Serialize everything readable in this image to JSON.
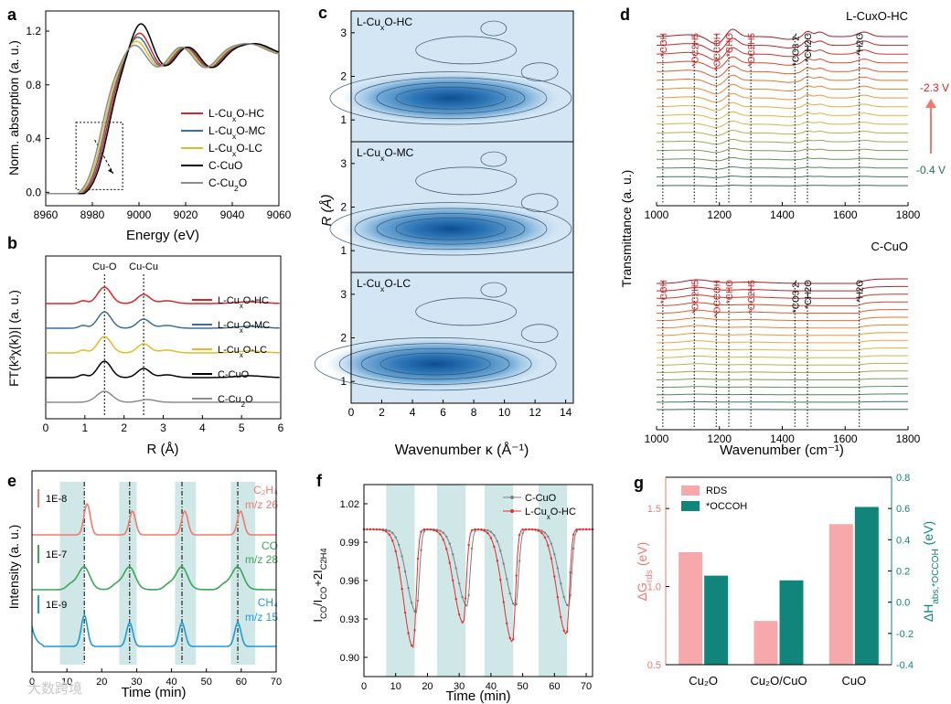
{
  "chart_data": [
    {
      "panel": "a",
      "type": "line",
      "xlabel": "Energy (eV)",
      "ylabel": "Norm. absorption (a. u.)",
      "xlim": [
        8960,
        9060
      ],
      "ylim": [
        -0.1,
        1.35
      ],
      "xticks": [
        8960,
        8980,
        9000,
        9020,
        9040,
        9060
      ],
      "yticks": [
        0.0,
        0.4,
        0.8,
        1.2
      ],
      "series": [
        {
          "name": "L-CuxO-HC",
          "color": "#d62728",
          "shift": 0,
          "peak": 1.22
        },
        {
          "name": "L-CuxO-MC",
          "color": "#3a6f9b",
          "shift": -0.7,
          "peak": 1.19
        },
        {
          "name": "L-CuxO-LC",
          "color": "#e8b923",
          "shift": -1.4,
          "peak": 1.16
        },
        {
          "name": "C-CuO",
          "color": "#000000",
          "shift": 0.7,
          "peak": 1.29
        },
        {
          "name": "C-Cu2O",
          "color": "#8c8c8c",
          "shift": -2.2,
          "peak": 1.13
        }
      ],
      "legend": [
        {
          "main": "L-Cu",
          "sub": "x",
          "rest": "O-HC",
          "color": "#d62728"
        },
        {
          "main": "L-Cu",
          "sub": "x",
          "rest": "O-MC",
          "color": "#3a6f9b"
        },
        {
          "main": "L-Cu",
          "sub": "x",
          "rest": "O-LC",
          "color": "#e8b923"
        },
        {
          "main": "C-CuO",
          "sub": "",
          "rest": "",
          "color": "#000000"
        },
        {
          "main": "C-Cu",
          "sub": "2",
          "rest": "O",
          "color": "#8c8c8c"
        }
      ]
    },
    {
      "panel": "b",
      "type": "line",
      "xlabel": "R (Å)",
      "ylabel": "FT(k³χ(k))| (a. u.)",
      "xlim": [
        0,
        6
      ],
      "xticks": [
        0,
        1,
        2,
        3,
        4,
        5,
        6
      ],
      "annotations": [
        "Cu-O",
        "Cu-Cu"
      ],
      "markers_R": [
        1.5,
        2.5
      ],
      "series": [
        {
          "name": "L-CuxO-HC",
          "color": "#d62728",
          "offset": 4
        },
        {
          "name": "L-CuxO-MC",
          "color": "#3a6f9b",
          "offset": 3
        },
        {
          "name": "L-CuxO-LC",
          "color": "#e8b923",
          "offset": 2
        },
        {
          "name": "C-CuO",
          "color": "#000000",
          "offset": 1
        },
        {
          "name": "C-Cu2O",
          "color": "#8c8c8c",
          "offset": 0
        }
      ],
      "labels": [
        {
          "main": "L-Cu",
          "sub": "x",
          "rest": "O-HC"
        },
        {
          "main": "L-Cu",
          "sub": "x",
          "rest": "O-MC"
        },
        {
          "main": "L-Cu",
          "sub": "x",
          "rest": "O-LC"
        },
        {
          "main": "C-CuO",
          "sub": "",
          "rest": ""
        },
        {
          "main": "C-Cu",
          "sub": "2",
          "rest": "O"
        }
      ]
    },
    {
      "panel": "c",
      "type": "heatmap",
      "xlabel": "Wavenumber κ (Å⁻¹)",
      "ylabel": "R (Å)",
      "xlim": [
        0,
        14.5
      ],
      "ylim": [
        0.5,
        3.5
      ],
      "xticks": [
        0,
        2,
        4,
        6,
        8,
        10,
        12,
        14
      ],
      "yticks": [
        1,
        2,
        3
      ],
      "subplots": [
        {
          "main": "L-Cu",
          "sub": "x",
          "rest": "O-HC",
          "center": [
            6.5,
            1.5
          ]
        },
        {
          "main": "L-Cu",
          "sub": "x",
          "rest": "O-MC",
          "center": [
            6.5,
            1.5
          ]
        },
        {
          "main": "L-Cu",
          "sub": "x",
          "rest": "O-LC",
          "center": [
            5.5,
            1.4
          ]
        }
      ]
    },
    {
      "panel": "d",
      "type": "line",
      "xlabel": "Wavenumber (cm⁻¹)",
      "ylabel": "Transmittance (a. u.)",
      "xlim": [
        1000,
        1800
      ],
      "xticks": [
        1000,
        1200,
        1400,
        1600,
        1800
      ],
      "potential_top": "-2.3 V",
      "potential_bottom": "-0.4 V",
      "subplots": [
        {
          "title": "L-CuxO-HC",
          "n_spectra": 18
        },
        {
          "title": "C-CuO",
          "n_spectra": 18
        }
      ],
      "band_labels": [
        "*COH",
        "*OC2H5",
        "*OCCOH",
        "*CHO",
        "*OC2H5",
        "*CO3 2-",
        "*CH2O",
        "*H2O"
      ],
      "band_positions": [
        1020,
        1120,
        1190,
        1230,
        1300,
        1440,
        1480,
        1645
      ]
    },
    {
      "panel": "e",
      "type": "line",
      "xlabel": "Time (min)",
      "ylabel": "Intensity (a. u.)",
      "xlim": [
        0,
        70
      ],
      "xticks": [
        0,
        10,
        20,
        30,
        40,
        50,
        60,
        70
      ],
      "shaded_intervals": [
        [
          8,
          15
        ],
        [
          25,
          30
        ],
        [
          41,
          47
        ],
        [
          57,
          64
        ]
      ],
      "dashed_times": [
        15,
        28,
        43,
        59
      ],
      "series": [
        {
          "name": "C2H4 m/z 26",
          "color": "#f07a6e",
          "scale": "1E-8"
        },
        {
          "name": "CO m/z 28",
          "color": "#3aa657",
          "scale": "1E-7"
        },
        {
          "name": "CH4 m/z 15",
          "color": "#1f9bd7",
          "scale": "1E-9"
        }
      ],
      "labels": [
        "C₂H₄",
        "m/z 26",
        "CO",
        "m/z 28",
        "CH₄",
        "m/z 15"
      ]
    },
    {
      "panel": "f",
      "type": "line",
      "xlabel": "Time (min)",
      "ylabel": "ICO/ICO+2IC2H4",
      "xlim": [
        0,
        72
      ],
      "ylim": [
        0.885,
        1.035
      ],
      "xticks": [
        0,
        10,
        20,
        30,
        40,
        50,
        60,
        70
      ],
      "yticks": [
        0.9,
        0.93,
        0.96,
        0.99,
        1.02
      ],
      "shaded_intervals": [
        [
          7,
          16
        ],
        [
          23,
          32
        ],
        [
          38,
          47
        ],
        [
          55,
          64
        ]
      ],
      "series": [
        {
          "name": "C-CuO",
          "color": "#7f7f7f",
          "minima": [
            0.935,
            0.94,
            0.94,
            0.94
          ],
          "min_times": [
            16.5,
            32.5,
            47.8,
            64.5
          ]
        },
        {
          "name": "L-CuxO-HC",
          "color": "#e03030",
          "minima": [
            0.908,
            0.927,
            0.912,
            0.918
          ],
          "min_times": [
            15.5,
            31.3,
            46.8,
            63.8
          ]
        }
      ]
    },
    {
      "panel": "g",
      "type": "bar",
      "categories": [
        "Cu₂O",
        "Cu₂O/CuO",
        "CuO"
      ],
      "series": [
        {
          "name": "RDS",
          "color": "#f7a8ab",
          "values": [
            1.22,
            0.78,
            1.4
          ]
        },
        {
          "name": "*OCCOH",
          "color": "#11857a",
          "values": [
            0.17,
            0.14,
            0.61
          ]
        }
      ],
      "ylabel_left": "ΔGrds (eV)",
      "ylabel_right": "ΔHabs,*OCCOH (eV)",
      "ylim_left": [
        0.5,
        1.7
      ],
      "yticks_left": [
        0.5,
        1.0,
        1.5
      ],
      "ylim_right": [
        -0.4,
        0.8
      ],
      "yticks_right": [
        -0.4,
        -0.2,
        0.0,
        0.2,
        0.4,
        0.6,
        0.8
      ]
    }
  ],
  "panel_letters": [
    "a",
    "b",
    "c",
    "d",
    "e",
    "f",
    "g"
  ],
  "watermark": "大数跨境"
}
